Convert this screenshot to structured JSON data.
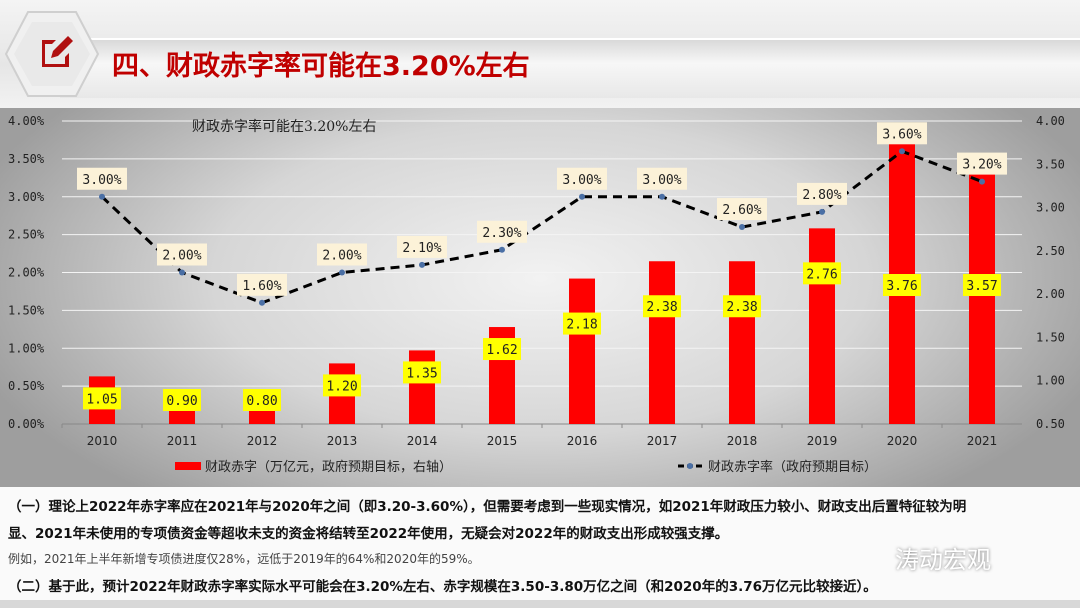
{
  "header": {
    "title": "四、财政赤字率可能在3.20%左右",
    "icon": "edit-document-icon"
  },
  "chart_data": {
    "type": "bar+line",
    "title": "财政赤字率可能在3.20%左右",
    "categories": [
      "2010",
      "2011",
      "2012",
      "2013",
      "2014",
      "2015",
      "2016",
      "2017",
      "2018",
      "2019",
      "2020",
      "2021"
    ],
    "series": [
      {
        "name": "财政赤字（万亿元，政府预期目标，右轴）",
        "type": "bar",
        "axis": "right",
        "color": "#ff0000",
        "values": [
          1.05,
          0.9,
          0.8,
          1.2,
          1.35,
          1.62,
          2.18,
          2.38,
          2.38,
          2.76,
          3.76,
          3.57
        ],
        "labels": [
          "1.05",
          "0.90",
          "0.80",
          "1.20",
          "1.35",
          "1.62",
          "2.18",
          "2.38",
          "2.38",
          "2.76",
          "3.76",
          "3.57"
        ]
      },
      {
        "name": "财政赤字率（政府预期目标）",
        "type": "line",
        "axis": "left",
        "color": "#000000",
        "dash": true,
        "values": [
          3.0,
          2.0,
          1.6,
          2.0,
          2.1,
          2.3,
          3.0,
          3.0,
          2.6,
          2.8,
          3.6,
          3.2
        ],
        "labels": [
          "3.00%",
          "2.00%",
          "1.60%",
          "2.00%",
          "2.10%",
          "2.30%",
          "3.00%",
          "3.00%",
          "2.60%",
          "2.80%",
          "3.60%",
          "3.20%"
        ]
      }
    ],
    "left_axis": {
      "ylim": [
        0,
        4
      ],
      "ticks": [
        "0.00%",
        "0.50%",
        "1.00%",
        "1.50%",
        "2.00%",
        "2.50%",
        "3.00%",
        "3.50%",
        "4.00%"
      ]
    },
    "right_axis": {
      "ylim": [
        0.5,
        4
      ],
      "ticks": [
        "0.50",
        "1.00",
        "1.50",
        "2.00",
        "2.50",
        "3.00",
        "3.50",
        "4.00"
      ]
    },
    "grid": true,
    "legend": "bottom"
  },
  "text": {
    "p1a": "（一）理论上2022年赤字率应在2021年与2020年之间（即3.20-3.60%），但需要考虑到一些现实情况，如2021年财政压力较小、财政支出后置特征较为明",
    "p1b": "显、2021年未使用的专项债资金等超收未支的资金将结转至2022年使用，无疑会对2022年的财政支出形成较强支撑。",
    "p2": "例如，2021年上半年新增专项债进度仅28%，远低于2019年的64%和2020年的59%。",
    "p3": "（二）基于此，预计2022年财政赤字率实际水平可能会在3.20%左右、赤字规模在3.50-3.80万亿之间（和2020年的3.76万亿元比较接近）。"
  },
  "watermark": "涛动宏观"
}
